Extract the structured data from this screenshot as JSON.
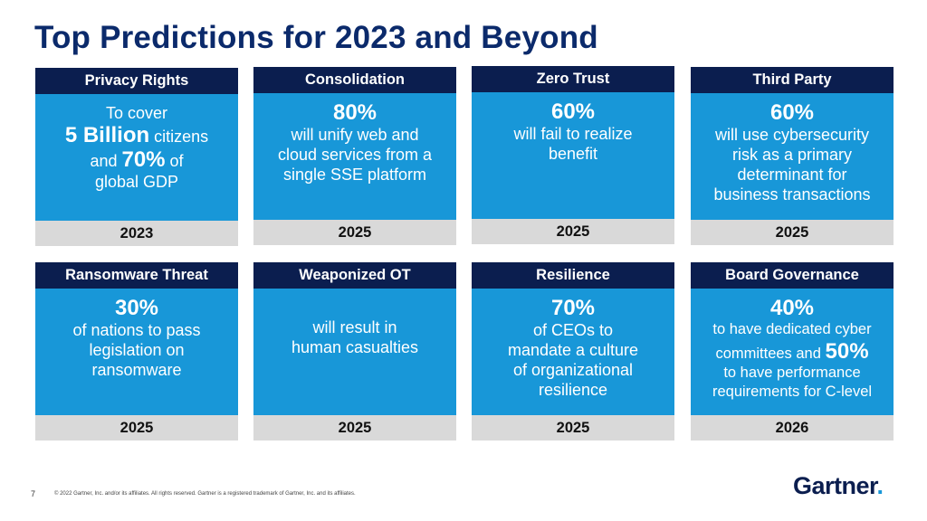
{
  "title": "Top Predictions for 2023 and Beyond",
  "cards": [
    {
      "heading": "Privacy Rights",
      "line1": "To cover",
      "big1": "5 Billion",
      "mid1": " citizens",
      "line2": "and ",
      "big2": "70%",
      "mid2": " of",
      "line3": "global GDP",
      "year": "2023"
    },
    {
      "heading": "Consolidation",
      "big": "80%",
      "lines": [
        "will unify web and",
        "cloud services from a",
        "single SSE platform"
      ],
      "year": "2025"
    },
    {
      "heading": "Zero Trust",
      "big": "60%",
      "lines": [
        "will fail to realize",
        "benefit"
      ],
      "year": "2025"
    },
    {
      "heading": "Third Party",
      "big": "60%",
      "lines": [
        "will use cybersecurity",
        "risk as a primary",
        "determinant for",
        "business transactions"
      ],
      "year": "2025"
    },
    {
      "heading": "Ransomware Threat",
      "big": "30%",
      "lines": [
        "of nations to pass",
        "legislation on",
        "ransomware"
      ],
      "year": "2025"
    },
    {
      "heading": "Weaponized OT",
      "lines": [
        "will result in",
        "human casualties"
      ],
      "year": "2025"
    },
    {
      "heading": "Resilience",
      "big": "70%",
      "lines": [
        "of CEOs to",
        "mandate a culture",
        "of organizational",
        "resilience"
      ],
      "year": "2025"
    },
    {
      "heading": "Board Governance",
      "big": "40%",
      "line1": "to have dedicated cyber",
      "line2": "committees and ",
      "big2": "50%",
      "line3": "to have performance",
      "line4": "requirements for C-level",
      "year": "2026"
    }
  ],
  "footer": {
    "page_number": "7",
    "copyright": "© 2022 Gartner, Inc. and/or its affiliates. All rights reserved. Gartner is a registered trademark of Gartner, Inc. and its affiliates.",
    "logo_text": "Gartner",
    "logo_dot": "."
  }
}
